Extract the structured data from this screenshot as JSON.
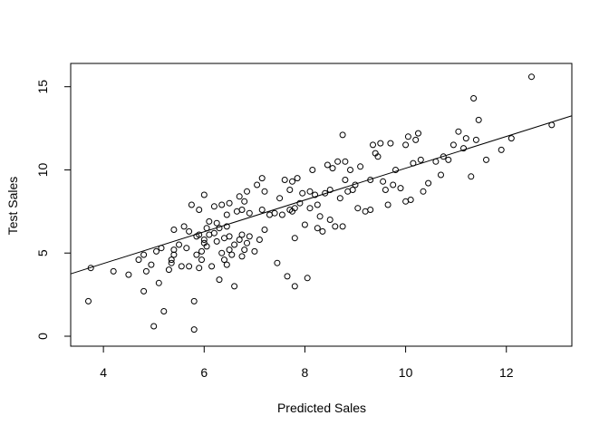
{
  "chart_data": {
    "type": "scatter",
    "xlabel": "Predicted Sales",
    "ylabel": "Test Sales",
    "xlim": [
      3.35,
      13.3
    ],
    "ylim": [
      -0.6,
      16.4
    ],
    "x_ticks": [
      4,
      6,
      8,
      10,
      12
    ],
    "y_ticks": [
      0,
      5,
      10,
      15
    ],
    "x_tick_labels": [
      "4",
      "6",
      "8",
      "10",
      "12"
    ],
    "y_tick_labels": [
      "0",
      "5",
      "10",
      "15"
    ],
    "grid": false,
    "legend": "none",
    "regression_line": {
      "intercept": 0.55,
      "slope": 0.955
    },
    "points": [
      [
        3.7,
        2.1
      ],
      [
        3.75,
        4.1
      ],
      [
        4.2,
        3.9
      ],
      [
        4.5,
        3.7
      ],
      [
        4.7,
        4.6
      ],
      [
        4.8,
        4.9
      ],
      [
        4.8,
        2.7
      ],
      [
        4.85,
        3.9
      ],
      [
        4.95,
        4.3
      ],
      [
        5.0,
        0.6
      ],
      [
        5.05,
        5.1
      ],
      [
        5.1,
        3.2
      ],
      [
        5.15,
        5.3
      ],
      [
        5.2,
        1.5
      ],
      [
        5.3,
        4.0
      ],
      [
        5.35,
        4.6
      ],
      [
        5.35,
        4.4
      ],
      [
        5.4,
        4.9
      ],
      [
        5.4,
        5.2
      ],
      [
        5.4,
        6.4
      ],
      [
        5.5,
        5.5
      ],
      [
        5.55,
        4.2
      ],
      [
        5.6,
        6.6
      ],
      [
        5.65,
        5.3
      ],
      [
        5.7,
        6.3
      ],
      [
        5.7,
        4.2
      ],
      [
        5.75,
        7.9
      ],
      [
        5.8,
        2.1
      ],
      [
        5.8,
        0.4
      ],
      [
        5.85,
        4.9
      ],
      [
        5.85,
        6.0
      ],
      [
        5.9,
        6.1
      ],
      [
        5.9,
        4.1
      ],
      [
        5.9,
        7.6
      ],
      [
        5.95,
        5.1
      ],
      [
        5.95,
        4.6
      ],
      [
        6.0,
        5.6
      ],
      [
        6.0,
        5.8
      ],
      [
        6.0,
        8.5
      ],
      [
        6.05,
        6.5
      ],
      [
        6.05,
        5.4
      ],
      [
        6.1,
        6.1
      ],
      [
        6.1,
        6.9
      ],
      [
        6.15,
        4.2
      ],
      [
        6.2,
        6.2
      ],
      [
        6.2,
        7.8
      ],
      [
        6.25,
        6.8
      ],
      [
        6.25,
        5.7
      ],
      [
        6.3,
        3.4
      ],
      [
        6.3,
        6.5
      ],
      [
        6.35,
        7.9
      ],
      [
        6.35,
        5.0
      ],
      [
        6.4,
        4.6
      ],
      [
        6.4,
        5.9
      ],
      [
        6.45,
        4.3
      ],
      [
        6.45,
        6.6
      ],
      [
        6.45,
        7.3
      ],
      [
        6.5,
        5.2
      ],
      [
        6.5,
        6.0
      ],
      [
        6.5,
        8.0
      ],
      [
        6.55,
        4.9
      ],
      [
        6.6,
        5.5
      ],
      [
        6.6,
        3.0
      ],
      [
        6.65,
        7.5
      ],
      [
        6.7,
        5.8
      ],
      [
        6.7,
        8.4
      ],
      [
        6.75,
        4.8
      ],
      [
        6.75,
        6.1
      ],
      [
        6.75,
        7.6
      ],
      [
        6.8,
        5.2
      ],
      [
        6.8,
        8.1
      ],
      [
        6.85,
        8.7
      ],
      [
        6.85,
        5.6
      ],
      [
        6.9,
        6.0
      ],
      [
        6.9,
        7.4
      ],
      [
        7.0,
        5.1
      ],
      [
        7.05,
        9.1
      ],
      [
        7.1,
        5.8
      ],
      [
        7.15,
        7.6
      ],
      [
        7.15,
        9.5
      ],
      [
        7.2,
        6.4
      ],
      [
        7.2,
        8.7
      ],
      [
        7.3,
        7.3
      ],
      [
        7.4,
        7.4
      ],
      [
        7.45,
        4.4
      ],
      [
        7.5,
        8.3
      ],
      [
        7.55,
        7.3
      ],
      [
        7.6,
        9.4
      ],
      [
        7.65,
        3.6
      ],
      [
        7.7,
        8.8
      ],
      [
        7.7,
        7.6
      ],
      [
        7.75,
        7.5
      ],
      [
        7.75,
        9.3
      ],
      [
        7.8,
        3.0
      ],
      [
        7.8,
        7.7
      ],
      [
        7.8,
        5.9
      ],
      [
        7.85,
        9.5
      ],
      [
        7.9,
        8.0
      ],
      [
        7.95,
        8.6
      ],
      [
        8.0,
        6.7
      ],
      [
        8.05,
        3.5
      ],
      [
        8.1,
        7.7
      ],
      [
        8.1,
        8.7
      ],
      [
        8.15,
        10.0
      ],
      [
        8.2,
        8.5
      ],
      [
        8.25,
        6.5
      ],
      [
        8.25,
        7.9
      ],
      [
        8.3,
        7.2
      ],
      [
        8.35,
        6.3
      ],
      [
        8.4,
        8.6
      ],
      [
        8.45,
        10.3
      ],
      [
        8.5,
        8.8
      ],
      [
        8.5,
        7.0
      ],
      [
        8.55,
        10.1
      ],
      [
        8.6,
        6.6
      ],
      [
        8.65,
        10.5
      ],
      [
        8.7,
        8.3
      ],
      [
        8.75,
        12.1
      ],
      [
        8.75,
        6.6
      ],
      [
        8.8,
        9.4
      ],
      [
        8.8,
        10.5
      ],
      [
        8.85,
        8.7
      ],
      [
        8.9,
        10.0
      ],
      [
        8.95,
        8.8
      ],
      [
        9.0,
        9.1
      ],
      [
        9.05,
        7.7
      ],
      [
        9.1,
        10.2
      ],
      [
        9.2,
        7.5
      ],
      [
        9.3,
        7.6
      ],
      [
        9.3,
        9.4
      ],
      [
        9.35,
        11.5
      ],
      [
        9.4,
        11.0
      ],
      [
        9.45,
        10.8
      ],
      [
        9.5,
        11.6
      ],
      [
        9.55,
        9.3
      ],
      [
        9.6,
        8.8
      ],
      [
        9.65,
        7.9
      ],
      [
        9.7,
        11.6
      ],
      [
        9.75,
        9.1
      ],
      [
        9.8,
        10.0
      ],
      [
        9.9,
        8.9
      ],
      [
        10.0,
        11.5
      ],
      [
        10.0,
        8.1
      ],
      [
        10.05,
        12.0
      ],
      [
        10.1,
        8.2
      ],
      [
        10.15,
        10.4
      ],
      [
        10.2,
        11.8
      ],
      [
        10.25,
        12.2
      ],
      [
        10.3,
        10.6
      ],
      [
        10.35,
        8.7
      ],
      [
        10.45,
        9.2
      ],
      [
        10.6,
        10.5
      ],
      [
        10.7,
        9.7
      ],
      [
        10.75,
        10.8
      ],
      [
        10.85,
        10.6
      ],
      [
        10.95,
        11.5
      ],
      [
        11.05,
        12.3
      ],
      [
        11.15,
        11.3
      ],
      [
        11.2,
        11.9
      ],
      [
        11.3,
        9.6
      ],
      [
        11.35,
        14.3
      ],
      [
        11.4,
        11.8
      ],
      [
        11.45,
        13.0
      ],
      [
        11.6,
        10.6
      ],
      [
        11.9,
        11.2
      ],
      [
        12.1,
        11.9
      ],
      [
        12.5,
        15.6
      ],
      [
        12.9,
        12.7
      ]
    ]
  }
}
